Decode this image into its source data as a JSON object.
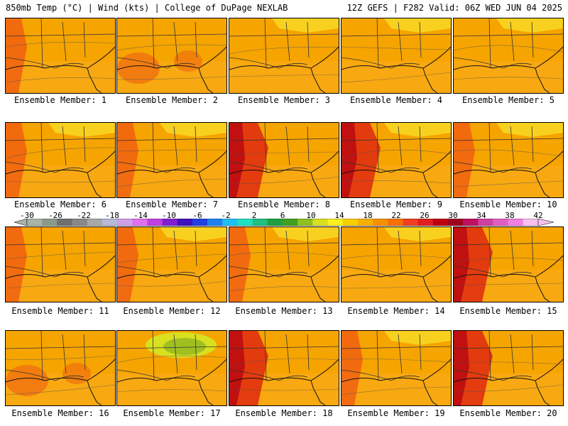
{
  "header": {
    "left": "850mb Temp (°C) | Wind (kts) | College of DuPage NEXLAB",
    "right": "12Z GEFS | F282 Valid: 06Z WED JUN 04 2025"
  },
  "panels": [
    {
      "label": "Ensemble Member: 1",
      "hot": "west",
      "cool": "none"
    },
    {
      "label": "Ensemble Member: 2",
      "hot": "mixed",
      "cool": "none"
    },
    {
      "label": "Ensemble Member: 3",
      "hot": "none",
      "cool": "north"
    },
    {
      "label": "Ensemble Member: 4",
      "hot": "none",
      "cool": "north"
    },
    {
      "label": "Ensemble Member: 5",
      "hot": "none",
      "cool": "north"
    },
    {
      "label": "Ensemble Member: 6",
      "hot": "west",
      "cool": "north"
    },
    {
      "label": "Ensemble Member: 7",
      "hot": "west",
      "cool": "north"
    },
    {
      "label": "Ensemble Member: 8",
      "hot": "strong",
      "cool": "none"
    },
    {
      "label": "Ensemble Member: 9",
      "hot": "strong",
      "cool": "north"
    },
    {
      "label": "Ensemble Member: 10",
      "hot": "west",
      "cool": "north"
    },
    {
      "label": "Ensemble Member: 11",
      "hot": "west",
      "cool": "none"
    },
    {
      "label": "Ensemble Member: 12",
      "hot": "west",
      "cool": "north"
    },
    {
      "label": "Ensemble Member: 13",
      "hot": "west",
      "cool": "north"
    },
    {
      "label": "Ensemble Member: 14",
      "hot": "none",
      "cool": "north"
    },
    {
      "label": "Ensemble Member: 15",
      "hot": "strong",
      "cool": "none"
    },
    {
      "label": "Ensemble Member: 16",
      "hot": "mixed",
      "cool": "none"
    },
    {
      "label": "Ensemble Member: 17",
      "hot": "none",
      "cool": "green"
    },
    {
      "label": "Ensemble Member: 18",
      "hot": "strong",
      "cool": "none"
    },
    {
      "label": "Ensemble Member: 19",
      "hot": "west",
      "cool": "north"
    },
    {
      "label": "Ensemble Member: 20",
      "hot": "strong",
      "cool": "none"
    }
  ],
  "colorbar": {
    "ticks": [
      "-30",
      "-26",
      "-22",
      "-18",
      "-14",
      "-10",
      "-6",
      "-2",
      "2",
      "6",
      "10",
      "14",
      "18",
      "22",
      "26",
      "30",
      "34",
      "38",
      "42"
    ],
    "colors": [
      "#a8b4a8",
      "#8a9a8a",
      "#707070",
      "#888888",
      "#a8a8a8",
      "#b8b8d8",
      "#d0a0e8",
      "#e070f0",
      "#c040e0",
      "#8020d0",
      "#4010c0",
      "#2040e0",
      "#2080f0",
      "#20c0f0",
      "#20e0c0",
      "#20c080",
      "#20a040",
      "#40a020",
      "#90c020",
      "#d8e020",
      "#f8f020",
      "#f8d000",
      "#f8b000",
      "#f89000",
      "#f87000",
      "#f04020",
      "#e02020",
      "#c00010",
      "#a00020",
      "#c01060",
      "#d040a0",
      "#e060c0",
      "#f080e0",
      "#f8c0f0"
    ]
  }
}
